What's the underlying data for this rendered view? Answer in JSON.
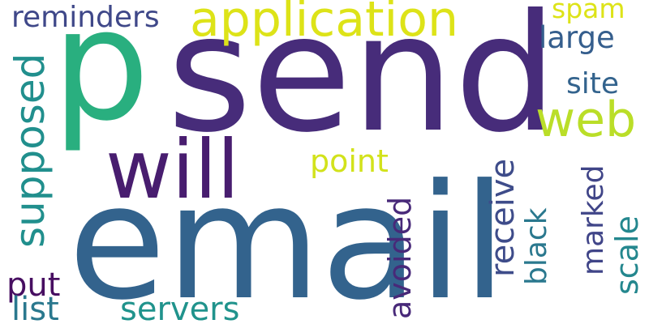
{
  "words": {
    "email": {
      "text": "email",
      "color": "#33638d"
    },
    "send": {
      "text": "send",
      "color": "#472c7a"
    },
    "p": {
      "text": "p",
      "color": "#29af7f"
    },
    "will": {
      "text": "will",
      "color": "#481d6f"
    },
    "application": {
      "text": "application",
      "color": "#dde318"
    },
    "web": {
      "text": "web",
      "color": "#bade28"
    },
    "supposed": {
      "text": "supposed",
      "color": "#218f8d"
    },
    "reminders": {
      "text": "reminders",
      "color": "#3f4889"
    },
    "spam": {
      "text": "spam",
      "color": "#dde318"
    },
    "large": {
      "text": "large",
      "color": "#355e8d"
    },
    "site": {
      "text": "site",
      "color": "#33638d"
    },
    "point": {
      "text": "point",
      "color": "#d2e21b"
    },
    "receive": {
      "text": "receive",
      "color": "#3e4c8a"
    },
    "black": {
      "text": "black",
      "color": "#2a788e"
    },
    "marked": {
      "text": "marked",
      "color": "#404588"
    },
    "scale": {
      "text": "scale",
      "color": "#24878e"
    },
    "avoided": {
      "text": "avoided",
      "color": "#482979"
    },
    "put": {
      "text": "put",
      "color": "#470e61"
    },
    "list": {
      "text": "list",
      "color": "#2a788e"
    },
    "servers": {
      "text": "servers",
      "color": "#20938c"
    }
  }
}
